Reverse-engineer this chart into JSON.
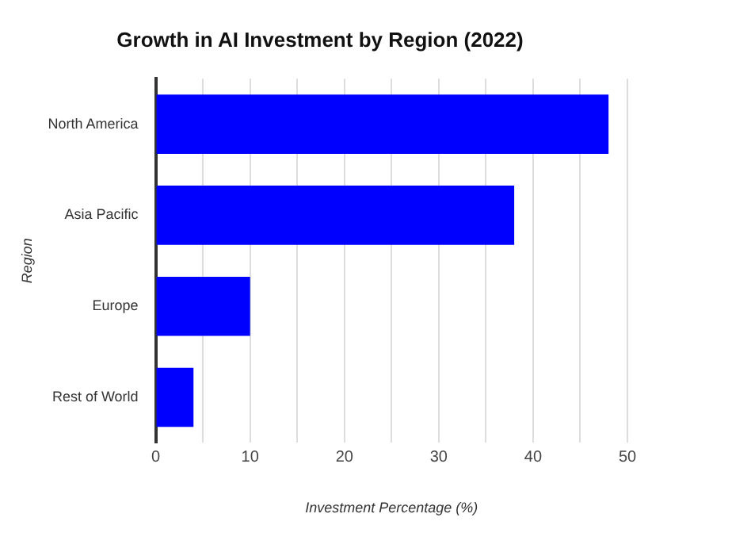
{
  "chart_data": {
    "type": "bar",
    "orientation": "horizontal",
    "title": "Growth in AI Investment by Region (2022)",
    "xlabel": "Investment Percentage (%)",
    "ylabel": "Region",
    "categories": [
      "North America",
      "Asia Pacific",
      "Europe",
      "Rest of World"
    ],
    "values": [
      48,
      38,
      10,
      4
    ],
    "color": "#0000ff",
    "xlim": [
      0,
      50
    ],
    "xticks": [
      0,
      {
        "value": 5,
        "label": null
      },
      10,
      {
        "value": 15,
        "label": null
      },
      20,
      {
        "value": 25,
        "label": null
      },
      30,
      {
        "value": 35,
        "label": null
      },
      40,
      {
        "value": 45,
        "label": null
      },
      50
    ],
    "grid": "x",
    "legend": false
  }
}
